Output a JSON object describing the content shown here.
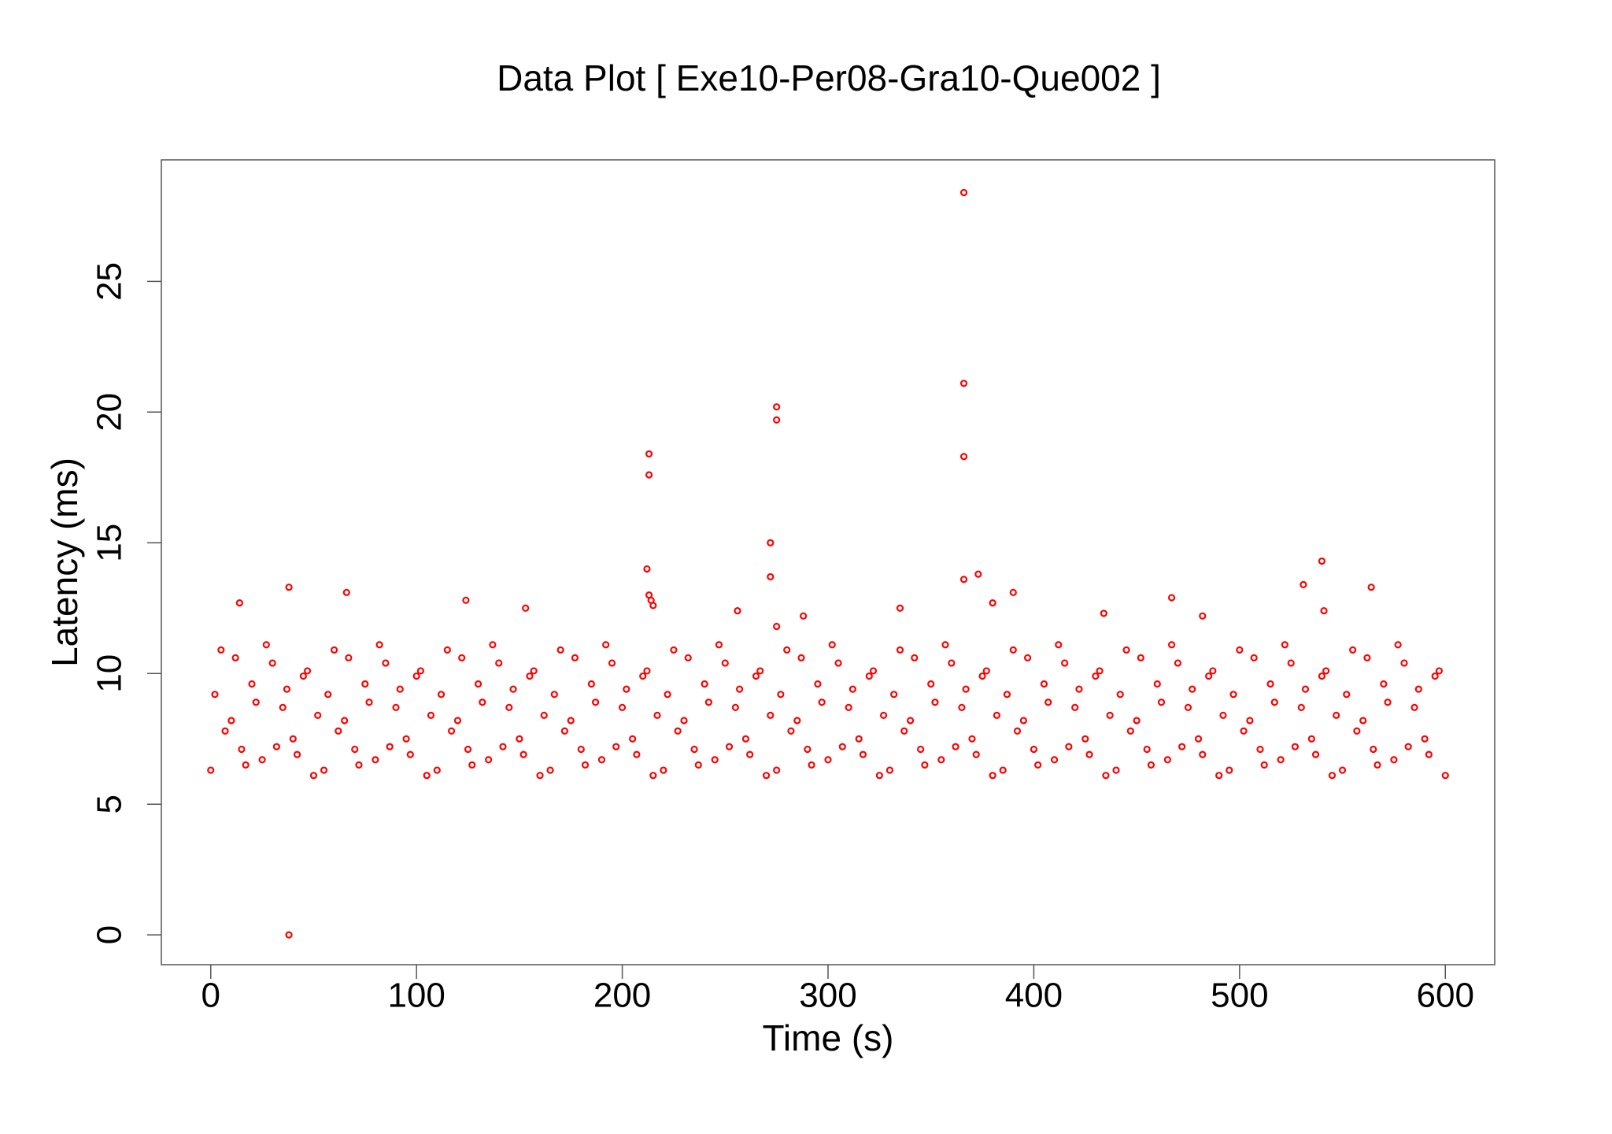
{
  "chart_data": {
    "type": "scatter",
    "title": "Data Plot [ Exe10-Per08-Gra10-Que002 ]",
    "x_label": "Time (s)",
    "y_label": "Latency (ms)",
    "color": "#ff0000",
    "xlim": [
      -24,
      624
    ],
    "xticks": [
      0,
      100,
      200,
      300,
      400,
      500,
      600
    ],
    "ylim": [
      -1.14,
      29.65
    ],
    "yticks": [
      0,
      5,
      10,
      15,
      20,
      25
    ],
    "x": [
      38,
      38,
      213,
      213,
      212,
      213,
      214,
      215,
      272,
      272,
      275,
      275,
      275,
      366,
      366,
      366,
      366,
      373,
      390,
      540,
      531,
      564,
      66,
      14,
      124,
      467,
      335,
      153,
      256,
      288,
      482,
      541,
      380,
      434,
      0,
      5,
      10,
      15,
      20,
      25,
      30,
      35,
      40,
      45,
      50,
      55,
      60,
      65,
      70,
      75,
      80,
      85,
      90,
      95,
      100,
      105,
      110,
      115,
      120,
      125,
      130,
      135,
      140,
      145,
      150,
      155,
      160,
      165,
      170,
      175,
      180,
      185,
      190,
      195,
      200,
      205,
      210,
      215,
      220,
      225,
      230,
      235,
      240,
      245,
      250,
      255,
      260,
      265,
      270,
      275,
      280,
      285,
      290,
      295,
      300,
      305,
      310,
      315,
      320,
      325,
      330,
      335,
      340,
      345,
      350,
      355,
      360,
      365,
      370,
      375,
      380,
      385,
      390,
      395,
      400,
      405,
      410,
      415,
      420,
      425,
      430,
      435,
      440,
      445,
      450,
      455,
      460,
      465,
      470,
      475,
      480,
      485,
      490,
      495,
      500,
      505,
      510,
      515,
      520,
      525,
      530,
      535,
      540,
      545,
      550,
      555,
      560,
      565,
      570,
      575,
      580,
      585,
      590,
      595,
      600,
      2,
      7,
      12,
      17,
      22,
      27,
      32,
      37,
      42,
      47,
      52,
      57,
      62,
      67,
      72,
      77,
      82,
      87,
      92,
      97,
      102,
      107,
      112,
      117,
      122,
      127,
      132,
      137,
      142,
      147,
      152,
      157,
      162,
      167,
      172,
      177,
      182,
      187,
      192,
      197,
      202,
      207,
      212,
      217,
      222,
      227,
      232,
      237,
      242,
      247,
      252,
      257,
      262,
      267,
      272,
      277,
      282,
      287,
      292,
      297,
      302,
      307,
      312,
      317,
      322,
      327,
      332,
      337,
      342,
      347,
      352,
      357,
      362,
      367,
      372,
      377,
      382,
      387,
      392,
      397,
      402,
      407,
      412,
      417,
      422,
      427,
      432,
      437,
      442,
      447,
      452,
      457,
      462,
      467,
      472,
      477,
      482,
      487,
      492,
      497,
      502,
      507,
      512,
      517,
      522,
      527,
      532,
      537,
      542,
      547,
      552,
      557,
      562,
      567,
      572,
      577,
      582,
      587,
      592,
      597
    ],
    "values": [
      0,
      13.3,
      18.4,
      17.6,
      14.0,
      13.0,
      12.8,
      12.6,
      15.0,
      13.7,
      20.2,
      19.7,
      11.8,
      28.4,
      21.1,
      18.3,
      13.6,
      13.8,
      13.1,
      14.3,
      13.4,
      13.3,
      13.1,
      12.7,
      12.8,
      12.9,
      12.5,
      12.5,
      12.4,
      12.2,
      12.2,
      12.4,
      12.7,
      12.3,
      6.3,
      10.9,
      8.2,
      7.1,
      9.6,
      6.7,
      10.4,
      8.7,
      7.5,
      9.9,
      6.1,
      6.3,
      10.9,
      8.2,
      7.1,
      9.6,
      6.7,
      10.4,
      8.7,
      7.5,
      9.9,
      6.1,
      6.3,
      10.9,
      8.2,
      7.1,
      9.6,
      6.7,
      10.4,
      8.7,
      7.5,
      9.9,
      6.1,
      6.3,
      10.9,
      8.2,
      7.1,
      9.6,
      6.7,
      10.4,
      8.7,
      7.5,
      9.9,
      6.1,
      6.3,
      10.9,
      8.2,
      7.1,
      9.6,
      6.7,
      10.4,
      8.7,
      7.5,
      9.9,
      6.1,
      6.3,
      10.9,
      8.2,
      7.1,
      9.6,
      6.7,
      10.4,
      8.7,
      7.5,
      9.9,
      6.1,
      6.3,
      10.9,
      8.2,
      7.1,
      9.6,
      6.7,
      10.4,
      8.7,
      7.5,
      9.9,
      6.1,
      6.3,
      10.9,
      8.2,
      7.1,
      9.6,
      6.7,
      10.4,
      8.7,
      7.5,
      9.9,
      6.1,
      6.3,
      10.9,
      8.2,
      7.1,
      9.6,
      6.7,
      10.4,
      8.7,
      7.5,
      9.9,
      6.1,
      6.3,
      10.9,
      8.2,
      7.1,
      9.6,
      6.7,
      10.4,
      8.7,
      7.5,
      9.9,
      6.1,
      6.3,
      10.9,
      8.2,
      7.1,
      9.6,
      6.7,
      10.4,
      8.7,
      7.5,
      9.9,
      6.1,
      9.2,
      7.8,
      10.6,
      6.5,
      8.9,
      11.1,
      7.2,
      9.4,
      6.9,
      10.1,
      8.4,
      9.2,
      7.8,
      10.6,
      6.5,
      8.9,
      11.1,
      7.2,
      9.4,
      6.9,
      10.1,
      8.4,
      9.2,
      7.8,
      10.6,
      6.5,
      8.9,
      11.1,
      7.2,
      9.4,
      6.9,
      10.1,
      8.4,
      9.2,
      7.8,
      10.6,
      6.5,
      8.9,
      11.1,
      7.2,
      9.4,
      6.9,
      10.1,
      8.4,
      9.2,
      7.8,
      10.6,
      6.5,
      8.9,
      11.1,
      7.2,
      9.4,
      6.9,
      10.1,
      8.4,
      9.2,
      7.8,
      10.6,
      6.5,
      8.9,
      11.1,
      7.2,
      9.4,
      6.9,
      10.1,
      8.4,
      9.2,
      7.8,
      10.6,
      6.5,
      8.9,
      11.1,
      7.2,
      9.4,
      6.9,
      10.1,
      8.4,
      9.2,
      7.8,
      10.6,
      6.5,
      8.9,
      11.1,
      7.2,
      9.4,
      6.9,
      10.1,
      8.4,
      9.2,
      7.8,
      10.6,
      6.5,
      8.9,
      11.1,
      7.2,
      9.4,
      6.9,
      10.1,
      8.4,
      9.2,
      7.8,
      10.6,
      6.5,
      8.9,
      11.1,
      7.2,
      9.4,
      6.9,
      10.1,
      8.4,
      9.2,
      7.8,
      10.6,
      6.5,
      8.9,
      11.1,
      7.2,
      9.4,
      6.9,
      10.1
    ]
  }
}
